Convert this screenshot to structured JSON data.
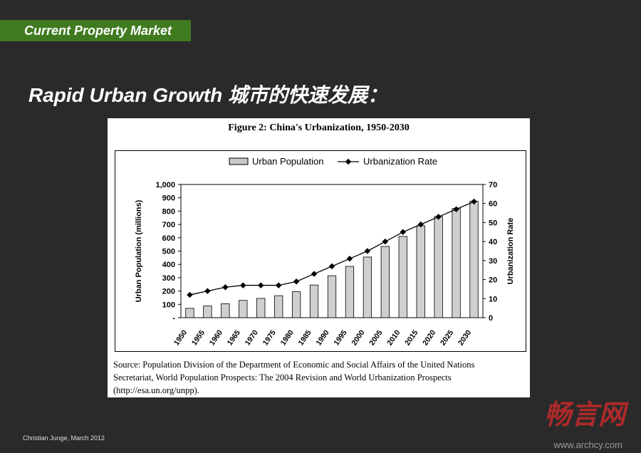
{
  "slide": {
    "section_tag": "Current Property Market",
    "title": "Rapid Urban Growth 城市的快速发展：",
    "footer": "Christian Junge, March 2012",
    "watermark": "畅言网",
    "watermark_url": "www.archcy.com"
  },
  "figure": {
    "title": "Figure 2: China's Urbanization, 1950-2030",
    "source_lines": [
      "Source: Population Division of the Department of Economic and Social Affairs of the United Nations",
      "Secretariat, World Population Prospects: The 2004 Revision and World Urbanization Prospects",
      "(http://esa.un.org/unpp)."
    ]
  },
  "chart_data": {
    "type": "bar",
    "categories": [
      "1950",
      "1955",
      "1960",
      "1965",
      "1970",
      "1975",
      "1980",
      "1985",
      "1990",
      "1995",
      "2000",
      "2005",
      "2010",
      "2015",
      "2020",
      "2025",
      "2030"
    ],
    "series": [
      {
        "name": "Urban Population",
        "axis": "left",
        "type": "bar",
        "values": [
          70,
          88,
          105,
          130,
          145,
          165,
          195,
          245,
          315,
          385,
          455,
          535,
          610,
          690,
          760,
          820,
          875
        ]
      },
      {
        "name": "Urbanization Rate",
        "axis": "right",
        "type": "line",
        "values": [
          12,
          14,
          16,
          17,
          17,
          17,
          19,
          23,
          27,
          31,
          35,
          40,
          45,
          49,
          53,
          57,
          61
        ]
      }
    ],
    "ylabel": "Urban Population (millions)",
    "y2label": "Urbanization Rate",
    "ylim": [
      0,
      1000
    ],
    "y2lim": [
      0,
      70
    ],
    "y_ticks": [
      "-",
      "100",
      "200",
      "300",
      "400",
      "500",
      "600",
      "700",
      "800",
      "900",
      "1,000"
    ],
    "y2_ticks": [
      "0",
      "10",
      "20",
      "30",
      "40",
      "50",
      "60",
      "70"
    ],
    "legend_position": "top",
    "grid": false
  }
}
